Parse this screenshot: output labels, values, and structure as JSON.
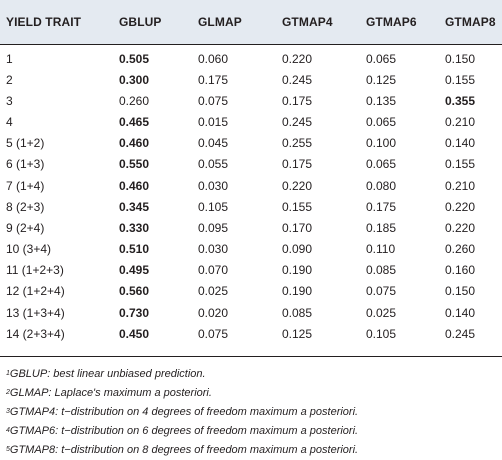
{
  "table": {
    "headers": [
      "YIELD TRAIT",
      "GBLUP",
      "GLMAP",
      "GTMAP4",
      "GTMAP6",
      "GTMAP8"
    ],
    "rows": [
      {
        "cells": [
          "1",
          "0.505",
          "0.060",
          "0.220",
          "0.065",
          "0.150"
        ],
        "bold": [
          1
        ]
      },
      {
        "cells": [
          "2",
          "0.300",
          "0.175",
          "0.245",
          "0.125",
          "0.155"
        ],
        "bold": [
          1
        ]
      },
      {
        "cells": [
          "3",
          "0.260",
          "0.075",
          "0.175",
          "0.135",
          "0.355"
        ],
        "bold": [
          5
        ]
      },
      {
        "cells": [
          "4",
          "0.465",
          "0.015",
          "0.245",
          "0.065",
          "0.210"
        ],
        "bold": [
          1
        ]
      },
      {
        "cells": [
          "5 (1+2)",
          "0.460",
          "0.045",
          "0.255",
          "0.100",
          "0.140"
        ],
        "bold": [
          1
        ]
      },
      {
        "cells": [
          "6 (1+3)",
          "0.550",
          "0.055",
          "0.175",
          "0.065",
          "0.155"
        ],
        "bold": [
          1
        ]
      },
      {
        "cells": [
          "7 (1+4)",
          "0.460",
          "0.030",
          "0.220",
          "0.080",
          "0.210"
        ],
        "bold": [
          1
        ]
      },
      {
        "cells": [
          "8 (2+3)",
          "0.345",
          "0.105",
          "0.155",
          "0.175",
          "0.220"
        ],
        "bold": [
          1
        ]
      },
      {
        "cells": [
          "9 (2+4)",
          "0.330",
          "0.095",
          "0.170",
          "0.185",
          "0.220"
        ],
        "bold": [
          1
        ]
      },
      {
        "cells": [
          "10 (3+4)",
          "0.510",
          "0.030",
          "0.090",
          "0.110",
          "0.260"
        ],
        "bold": [
          1
        ]
      },
      {
        "cells": [
          "11 (1+2+3)",
          "0.495",
          "0.070",
          "0.190",
          "0.085",
          "0.160"
        ],
        "bold": [
          1
        ]
      },
      {
        "cells": [
          "12 (1+2+4)",
          "0.560",
          "0.025",
          "0.190",
          "0.075",
          "0.150"
        ],
        "bold": [
          1
        ]
      },
      {
        "cells": [
          "13 (1+3+4)",
          "0.730",
          "0.020",
          "0.085",
          "0.025",
          "0.140"
        ],
        "bold": [
          1
        ]
      },
      {
        "cells": [
          "14 (2+3+4)",
          "0.450",
          "0.075",
          "0.125",
          "0.105",
          "0.245"
        ],
        "bold": [
          1
        ]
      }
    ]
  },
  "footnotes": [
    {
      "mark": "1",
      "text": "GBLUP: best linear unbiased prediction."
    },
    {
      "mark": "2",
      "text": "GLMAP: Laplace's maximum a posteriori."
    },
    {
      "mark": "3",
      "text": "GTMAP4: t−distribution on 4 degrees of freedom maximum a posteriori."
    },
    {
      "mark": "4",
      "text": "GTMAP6: t−distribution on 6 degrees of freedom maximum a posteriori."
    },
    {
      "mark": "5",
      "text": "GTMAP8: t−distribution on 8 degrees of freedom maximum a posteriori."
    }
  ],
  "colors": {
    "header_background": "#e4eaf1",
    "text": "#231f20",
    "rule": "#231f20"
  }
}
